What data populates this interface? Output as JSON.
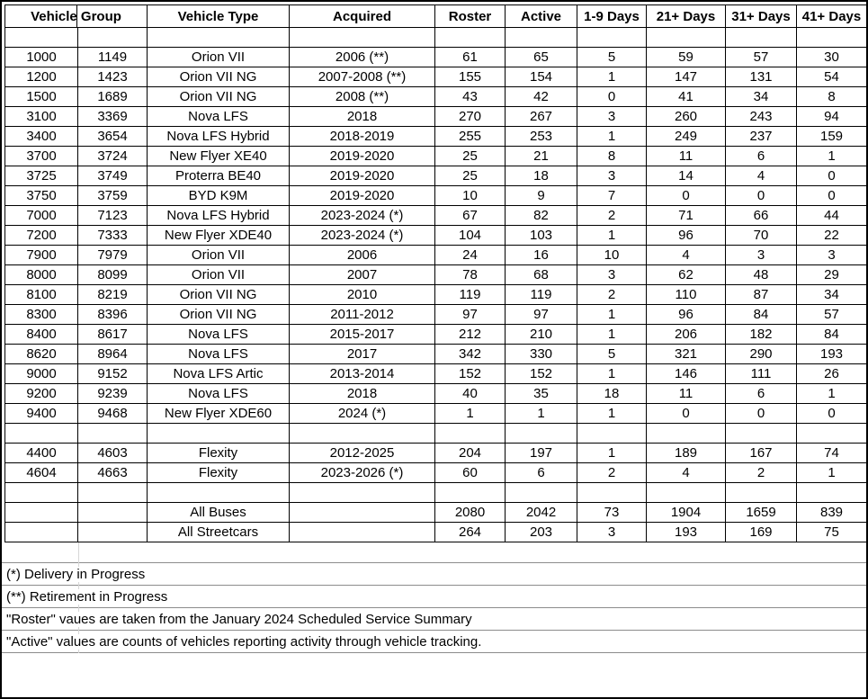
{
  "table": {
    "header": {
      "vehicle_group": "Vehicle Group",
      "columns": [
        "Vehicle Type",
        "Acquired",
        "Roster",
        "Active",
        "1-9 Days",
        "21+ Days",
        "31+ Days",
        "41+ Days"
      ]
    },
    "rows": [
      [
        "",
        "",
        "",
        "",
        "",
        "",
        "",
        "",
        "",
        ""
      ],
      [
        "1000",
        "1149",
        "Orion VII",
        "2006 (**)",
        "61",
        "65",
        "5",
        "59",
        "57",
        "30"
      ],
      [
        "1200",
        "1423",
        "Orion VII NG",
        "2007-2008 (**)",
        "155",
        "154",
        "1",
        "147",
        "131",
        "54"
      ],
      [
        "1500",
        "1689",
        "Orion VII NG",
        "2008 (**)",
        "43",
        "42",
        "0",
        "41",
        "34",
        "8"
      ],
      [
        "3100",
        "3369",
        "Nova LFS",
        "2018",
        "270",
        "267",
        "3",
        "260",
        "243",
        "94"
      ],
      [
        "3400",
        "3654",
        "Nova LFS Hybrid",
        "2018-2019",
        "255",
        "253",
        "1",
        "249",
        "237",
        "159"
      ],
      [
        "3700",
        "3724",
        "New Flyer XE40",
        "2019-2020",
        "25",
        "21",
        "8",
        "11",
        "6",
        "1"
      ],
      [
        "3725",
        "3749",
        "Proterra BE40",
        "2019-2020",
        "25",
        "18",
        "3",
        "14",
        "4",
        "0"
      ],
      [
        "3750",
        "3759",
        "BYD K9M",
        "2019-2020",
        "10",
        "9",
        "7",
        "0",
        "0",
        "0"
      ],
      [
        "7000",
        "7123",
        "Nova LFS Hybrid",
        "2023-2024 (*)",
        "67",
        "82",
        "2",
        "71",
        "66",
        "44"
      ],
      [
        "7200",
        "7333",
        "New Flyer XDE40",
        "2023-2024 (*)",
        "104",
        "103",
        "1",
        "96",
        "70",
        "22"
      ],
      [
        "7900",
        "7979",
        "Orion VII",
        "2006",
        "24",
        "16",
        "10",
        "4",
        "3",
        "3"
      ],
      [
        "8000",
        "8099",
        "Orion VII",
        "2007",
        "78",
        "68",
        "3",
        "62",
        "48",
        "29"
      ],
      [
        "8100",
        "8219",
        "Orion VII NG",
        "2010",
        "119",
        "119",
        "2",
        "110",
        "87",
        "34"
      ],
      [
        "8300",
        "8396",
        "Orion VII NG",
        "2011-2012",
        "97",
        "97",
        "1",
        "96",
        "84",
        "57"
      ],
      [
        "8400",
        "8617",
        "Nova LFS",
        "2015-2017",
        "212",
        "210",
        "1",
        "206",
        "182",
        "84"
      ],
      [
        "8620",
        "8964",
        "Nova LFS",
        "2017",
        "342",
        "330",
        "5",
        "321",
        "290",
        "193"
      ],
      [
        "9000",
        "9152",
        "Nova LFS Artic",
        "2013-2014",
        "152",
        "152",
        "1",
        "146",
        "111",
        "26"
      ],
      [
        "9200",
        "9239",
        "Nova LFS",
        "2018",
        "40",
        "35",
        "18",
        "11",
        "6",
        "1"
      ],
      [
        "9400",
        "9468",
        "New Flyer XDE60",
        "2024 (*)",
        "1",
        "1",
        "1",
        "0",
        "0",
        "0"
      ],
      [
        "",
        "",
        "",
        "",
        "",
        "",
        "",
        "",
        "",
        ""
      ],
      [
        "4400",
        "4603",
        "Flexity",
        "2012-2025",
        "204",
        "197",
        "1",
        "189",
        "167",
        "74"
      ],
      [
        "4604",
        "4663",
        "Flexity",
        "2023-2026 (*)",
        "60",
        "6",
        "2",
        "4",
        "2",
        "1"
      ],
      [
        "",
        "",
        "",
        "",
        "",
        "",
        "",
        "",
        "",
        ""
      ],
      [
        "",
        "",
        "All Buses",
        "",
        "2080",
        "2042",
        "73",
        "1904",
        "1659",
        "839"
      ],
      [
        "",
        "",
        "All Streetcars",
        "",
        "264",
        "203",
        "3",
        "193",
        "169",
        "75"
      ]
    ]
  },
  "notes": [
    "(*) Delivery in Progress",
    "(**) Retirement in Progress",
    "\"Roster\" vaues are taken from the January 2024 Scheduled Service Summary",
    "\"Active\" values are counts of vehicles reporting activity through vehicle tracking."
  ]
}
